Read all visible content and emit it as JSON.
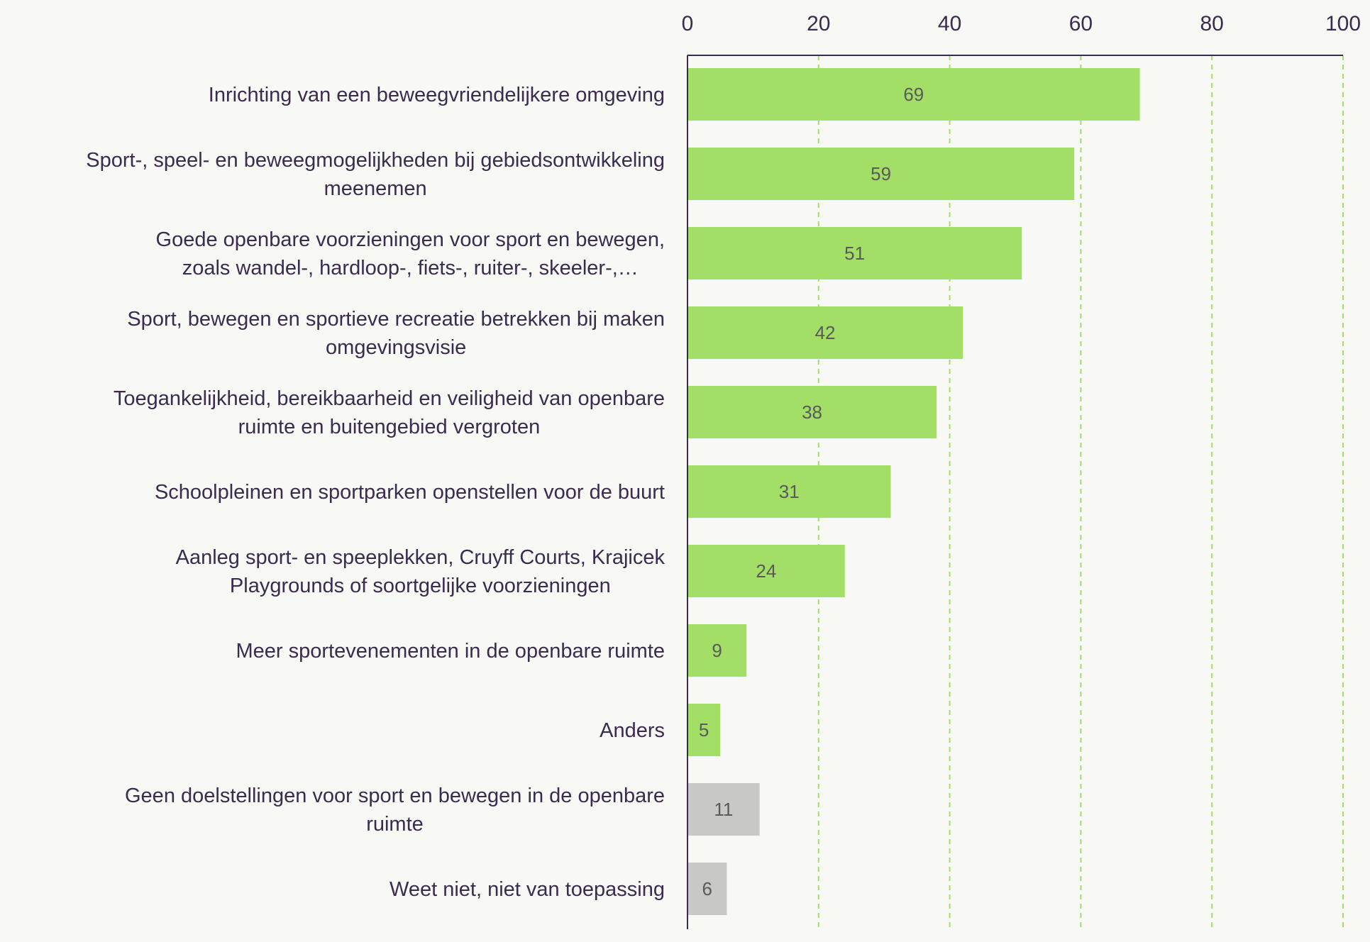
{
  "chart_data": {
    "type": "bar",
    "orientation": "horizontal",
    "categories": [
      [
        "Inrichting van een beweegvriendelijkere omgeving"
      ],
      [
        "Sport-, speel- en beweegmogelijkheden bij gebiedsontwikkeling",
        "meenemen"
      ],
      [
        "Goede openbare voorzieningen voor sport en bewegen,",
        "zoals wandel-, hardloop-, fiets-, ruiter-, skeeler-,…"
      ],
      [
        "Sport, bewegen en sportieve recreatie betrekken bij maken",
        "omgevingsvisie"
      ],
      [
        "Toegankelijkheid, bereikbaarheid en veiligheid van openbare",
        "ruimte en buitengebied vergroten"
      ],
      [
        "Schoolpleinen en sportparken openstellen voor de buurt"
      ],
      [
        "Aanleg sport- en speeplekken, Cruyff Courts, Krajicek",
        "Playgrounds of soortgelijke voorzieningen"
      ],
      [
        "Meer sportevenementen in de openbare ruimte"
      ],
      [
        "Anders"
      ],
      [
        "Geen doelstellingen voor sport en bewegen in de openbare",
        "ruimte"
      ],
      [
        "Weet niet, niet van toepassing"
      ]
    ],
    "values": [
      69,
      59,
      51,
      42,
      38,
      31,
      24,
      9,
      5,
      11,
      6
    ],
    "value_labels": [
      "69",
      "59",
      "51",
      "42",
      "38",
      "31",
      "24",
      "9",
      "5",
      "11",
      "6"
    ],
    "bar_colors": [
      "#a3de67",
      "#a3de67",
      "#a3de67",
      "#a3de67",
      "#a3de67",
      "#a3de67",
      "#a3de67",
      "#a3de67",
      "#a3de67",
      "#c8c8c6",
      "#c8c8c6"
    ],
    "xlim": [
      0,
      100
    ],
    "x_ticks": [
      0,
      20,
      40,
      60,
      80,
      100
    ],
    "x_tick_labels": [
      "0",
      "20",
      "40",
      "60",
      "80",
      "100"
    ],
    "x_axis_position": "top",
    "grid": true,
    "title": "",
    "xlabel": "",
    "ylabel": ""
  },
  "colors": {
    "accent_bar": "#a3de67",
    "neutral_bar": "#c8c8c6",
    "grid": "#a3de67",
    "axis": "#3b2b4f",
    "text": "#3b2b4f",
    "value_text": "#5a5a5a",
    "background": "#f8f8f4"
  }
}
